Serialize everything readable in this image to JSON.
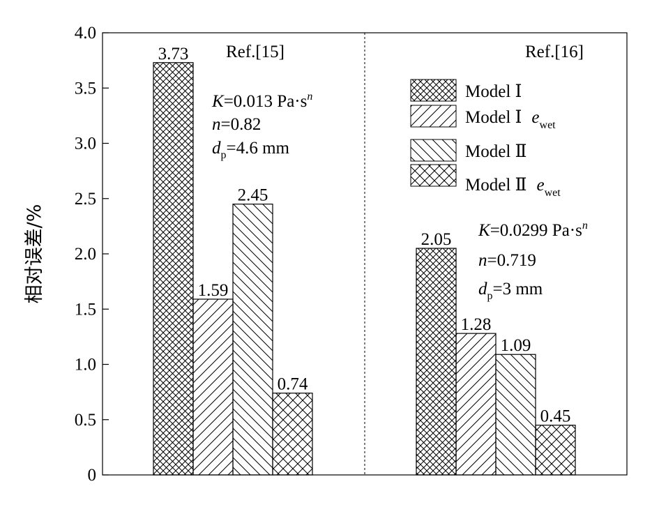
{
  "chart_data": {
    "type": "bar",
    "ylabel": "相对误差/%",
    "ylim": [
      0,
      4.0
    ],
    "yticks": [
      {
        "value": 0,
        "label": "0"
      },
      {
        "value": 0.5,
        "label": "0.5"
      },
      {
        "value": 1.0,
        "label": "1.0"
      },
      {
        "value": 1.5,
        "label": "1.5"
      },
      {
        "value": 2.0,
        "label": "2.0"
      },
      {
        "value": 2.5,
        "label": "2.5"
      },
      {
        "value": 3.0,
        "label": "3.0"
      },
      {
        "value": 3.5,
        "label": "3.5"
      },
      {
        "value": 4.0,
        "label": "4.0"
      }
    ],
    "groups": [
      {
        "ref": "Ref.[15]",
        "values": [
          3.73,
          1.59,
          2.45,
          0.74
        ],
        "labels": [
          "3.73",
          "1.59",
          "2.45",
          "0.74"
        ],
        "params": {
          "K_sym": "K",
          "K_val": "=0.013 Pa·s",
          "K_exp": "n",
          "n_sym": "n",
          "n_val": "=0.82",
          "d_sym": "d",
          "d_sub": "p",
          "d_val": "=4.6 mm"
        }
      },
      {
        "ref": "Ref.[16]",
        "values": [
          2.05,
          1.28,
          1.09,
          0.45
        ],
        "labels": [
          "2.05",
          "1.28",
          "1.09",
          "0.45"
        ],
        "params": {
          "K_sym": "K",
          "K_val": "=0.0299 Pa·s",
          "K_exp": "n",
          "n_sym": "n",
          "n_val": "=0.719",
          "d_sym": "d",
          "d_sub": "p",
          "d_val": "=3 mm"
        }
      }
    ],
    "series": [
      {
        "name": "Model Ⅰ",
        "pattern": "crosshatch-dense",
        "extra_sym": "",
        "extra_sub": ""
      },
      {
        "name": "Model Ⅰ",
        "pattern": "diagonal-forward",
        "extra_sym": "e",
        "extra_sub": "wet"
      },
      {
        "name": "Model Ⅱ",
        "pattern": "diagonal-backward",
        "extra_sym": "",
        "extra_sub": ""
      },
      {
        "name": "Model Ⅱ",
        "pattern": "crosshatch-wide",
        "extra_sym": "e",
        "extra_sub": "wet"
      }
    ]
  }
}
